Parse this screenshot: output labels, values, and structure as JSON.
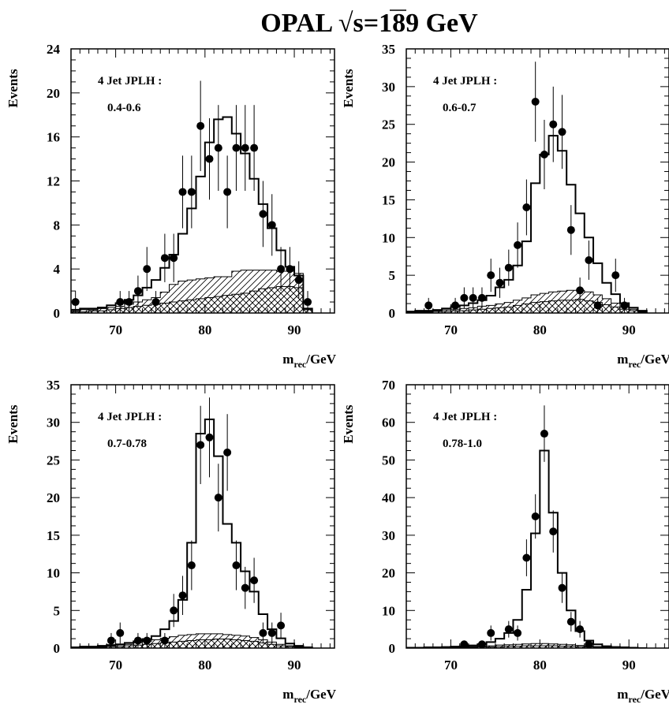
{
  "figure_title": {
    "prefix": "OPAL ",
    "sqrt_symbol": "√",
    "s_expr": "s=189 GeV"
  },
  "chart_data": [
    {
      "type": "histogram",
      "panel_position": "top-left",
      "annotation": {
        "line1": "4 Jet JPLH :",
        "line2": "0.4-0.6"
      },
      "ylabel": "Events",
      "xlabel": {
        "main": "m",
        "sub": "rec",
        "unit": "/GeV"
      },
      "xlim": [
        65,
        94.5
      ],
      "ylim": [
        0,
        24
      ],
      "xticks": [
        70,
        80,
        90
      ],
      "yticks": [
        0,
        4,
        8,
        12,
        16,
        20,
        24
      ],
      "hist_edges": [
        65,
        66,
        67,
        68,
        69,
        70,
        71,
        72,
        73,
        74,
        75,
        76,
        77,
        78,
        79,
        80,
        81,
        82,
        83,
        84,
        85,
        86,
        87,
        88,
        89,
        90,
        91,
        92
      ],
      "hist_values": [
        0.3,
        0.4,
        0.4,
        0.5,
        0.7,
        0.9,
        1.2,
        1.6,
        2.3,
        3.0,
        4.1,
        5.3,
        7.2,
        9.5,
        12.4,
        15.5,
        17.6,
        17.8,
        16.3,
        14.5,
        12.2,
        9.9,
        7.7,
        5.7,
        4.2,
        3.4,
        0.4
      ],
      "bkg_hatched": [
        0.1,
        0.1,
        0.2,
        0.2,
        0.3,
        0.4,
        0.5,
        0.6,
        0.7,
        0.8,
        0.9,
        1.0,
        1.1,
        1.2,
        1.3,
        1.4,
        1.5,
        1.6,
        1.7,
        1.8,
        2.0,
        2.2,
        2.3,
        2.4,
        2.4,
        2.3,
        0.3
      ],
      "bkg_total": [
        0.2,
        0.3,
        0.3,
        0.4,
        0.5,
        0.6,
        0.8,
        1.0,
        1.2,
        1.4,
        1.9,
        2.6,
        2.9,
        3.0,
        3.1,
        3.2,
        3.3,
        3.3,
        3.8,
        3.9,
        3.9,
        3.9,
        3.9,
        3.8,
        3.8,
        3.6,
        0.4
      ],
      "points": [
        {
          "x": 65.5,
          "y": 1,
          "err": 1.0
        },
        {
          "x": 70.5,
          "y": 1,
          "err": 1.0
        },
        {
          "x": 71.5,
          "y": 1,
          "err": 1.0
        },
        {
          "x": 72.5,
          "y": 2,
          "err": 1.4
        },
        {
          "x": 73.5,
          "y": 4,
          "err": 2.0
        },
        {
          "x": 74.5,
          "y": 1,
          "err": 1.0
        },
        {
          "x": 75.5,
          "y": 5,
          "err": 2.2
        },
        {
          "x": 76.5,
          "y": 5,
          "err": 2.2
        },
        {
          "x": 77.5,
          "y": 11,
          "err": 3.3
        },
        {
          "x": 78.5,
          "y": 11,
          "err": 3.3
        },
        {
          "x": 79.5,
          "y": 17,
          "err": 4.1
        },
        {
          "x": 80.5,
          "y": 14,
          "err": 3.7
        },
        {
          "x": 81.5,
          "y": 15,
          "err": 3.9
        },
        {
          "x": 82.5,
          "y": 11,
          "err": 3.3
        },
        {
          "x": 83.5,
          "y": 15,
          "err": 3.9
        },
        {
          "x": 84.5,
          "y": 15,
          "err": 3.9
        },
        {
          "x": 85.5,
          "y": 15,
          "err": 3.9
        },
        {
          "x": 86.5,
          "y": 9,
          "err": 3.0
        },
        {
          "x": 87.5,
          "y": 8,
          "err": 2.8
        },
        {
          "x": 88.5,
          "y": 4,
          "err": 2.0
        },
        {
          "x": 89.5,
          "y": 4,
          "err": 2.0
        },
        {
          "x": 90.5,
          "y": 3,
          "err": 1.7
        },
        {
          "x": 91.5,
          "y": 1,
          "err": 1.0
        }
      ]
    },
    {
      "type": "histogram",
      "panel_position": "top-right",
      "annotation": {
        "line1": "4 Jet JPLH :",
        "line2": "0.6-0.7"
      },
      "ylabel": "Events",
      "xlabel": {
        "main": "m",
        "sub": "rec",
        "unit": "/GeV"
      },
      "xlim": [
        65,
        94.5
      ],
      "ylim": [
        0,
        35
      ],
      "xticks": [
        70,
        80,
        90
      ],
      "yticks": [
        0,
        5,
        10,
        15,
        20,
        25,
        30,
        35
      ],
      "hist_edges": [
        65,
        66,
        67,
        68,
        69,
        70,
        71,
        72,
        73,
        74,
        75,
        76,
        77,
        78,
        79,
        80,
        81,
        82,
        83,
        84,
        85,
        86,
        87,
        88,
        89,
        90,
        91,
        92
      ],
      "hist_values": [
        0.2,
        0.3,
        0.3,
        0.4,
        0.6,
        0.8,
        1.0,
        1.3,
        1.7,
        2.3,
        3.4,
        4.4,
        6.3,
        9.5,
        17.2,
        21.0,
        23.5,
        21.5,
        17.0,
        13.2,
        10.0,
        6.6,
        4.0,
        2.5,
        1.3,
        0.7,
        0.3
      ],
      "bkg_hatched": [
        0.1,
        0.1,
        0.1,
        0.2,
        0.2,
        0.3,
        0.3,
        0.4,
        0.5,
        0.6,
        0.7,
        0.8,
        1.0,
        1.2,
        1.4,
        1.5,
        1.6,
        1.7,
        1.7,
        1.8,
        1.6,
        1.4,
        1.1,
        0.8,
        0.5,
        0.3,
        0.1
      ],
      "bkg_total": [
        0.1,
        0.2,
        0.2,
        0.3,
        0.4,
        0.5,
        0.6,
        0.7,
        0.9,
        1.0,
        1.2,
        1.4,
        1.7,
        2.0,
        2.4,
        2.6,
        2.8,
        2.9,
        3.0,
        3.0,
        2.8,
        2.4,
        1.9,
        1.3,
        0.8,
        0.5,
        0.2
      ],
      "points": [
        {
          "x": 67.5,
          "y": 1,
          "err": 1.0
        },
        {
          "x": 70.5,
          "y": 1,
          "err": 1.0
        },
        {
          "x": 71.5,
          "y": 2,
          "err": 1.4
        },
        {
          "x": 72.5,
          "y": 2,
          "err": 1.4
        },
        {
          "x": 73.5,
          "y": 2,
          "err": 1.4
        },
        {
          "x": 74.5,
          "y": 5,
          "err": 2.2
        },
        {
          "x": 75.5,
          "y": 4,
          "err": 2.0
        },
        {
          "x": 76.5,
          "y": 6,
          "err": 2.4
        },
        {
          "x": 77.5,
          "y": 9,
          "err": 3.0
        },
        {
          "x": 78.5,
          "y": 14,
          "err": 3.7
        },
        {
          "x": 79.5,
          "y": 28,
          "err": 5.3
        },
        {
          "x": 80.5,
          "y": 21,
          "err": 4.6
        },
        {
          "x": 81.5,
          "y": 25,
          "err": 5.0
        },
        {
          "x": 82.5,
          "y": 24,
          "err": 4.9
        },
        {
          "x": 83.5,
          "y": 11,
          "err": 3.3
        },
        {
          "x": 84.5,
          "y": 3,
          "err": 1.7
        },
        {
          "x": 85.5,
          "y": 7,
          "err": 2.6
        },
        {
          "x": 86.5,
          "y": 1,
          "err": 1.0
        },
        {
          "x": 88.5,
          "y": 5,
          "err": 2.2
        },
        {
          "x": 89.5,
          "y": 1,
          "err": 1.0
        }
      ]
    },
    {
      "type": "histogram",
      "panel_position": "bottom-left",
      "annotation": {
        "line1": "4 Jet JPLH :",
        "line2": "0.7-0.78"
      },
      "ylabel": "Events",
      "xlabel": {
        "main": "m",
        "sub": "rec",
        "unit": "/GeV"
      },
      "xlim": [
        65,
        94.5
      ],
      "ylim": [
        0,
        35
      ],
      "xticks": [
        70,
        80,
        90
      ],
      "yticks": [
        0,
        5,
        10,
        15,
        20,
        25,
        30,
        35
      ],
      "hist_edges": [
        65,
        66,
        67,
        68,
        69,
        70,
        71,
        72,
        73,
        74,
        75,
        76,
        77,
        78,
        79,
        80,
        81,
        82,
        83,
        84,
        85,
        86,
        87,
        88,
        89,
        90,
        91,
        92
      ],
      "hist_values": [
        0.1,
        0.2,
        0.2,
        0.3,
        0.4,
        0.5,
        0.7,
        0.9,
        1.2,
        1.6,
        2.5,
        3.6,
        6.4,
        14.0,
        28.5,
        30.4,
        25.5,
        16.5,
        14.0,
        10.2,
        7.5,
        4.5,
        2.5,
        1.3,
        0.6,
        0.3,
        0.1
      ],
      "bkg_hatched": [
        0.0,
        0.1,
        0.1,
        0.1,
        0.2,
        0.2,
        0.3,
        0.4,
        0.5,
        0.6,
        0.7,
        0.8,
        0.9,
        1.0,
        1.1,
        1.1,
        1.2,
        1.2,
        1.1,
        1.0,
        0.9,
        0.7,
        0.5,
        0.3,
        0.2,
        0.1,
        0.0
      ],
      "bkg_total": [
        0.1,
        0.1,
        0.2,
        0.2,
        0.3,
        0.4,
        0.5,
        0.7,
        0.9,
        1.1,
        1.3,
        1.5,
        1.7,
        1.8,
        1.9,
        1.9,
        1.9,
        1.8,
        1.7,
        1.6,
        1.4,
        1.1,
        0.8,
        0.5,
        0.3,
        0.2,
        0.1
      ],
      "points": [
        {
          "x": 69.5,
          "y": 1,
          "err": 1.0
        },
        {
          "x": 70.5,
          "y": 2,
          "err": 1.4
        },
        {
          "x": 72.5,
          "y": 1,
          "err": 1.0
        },
        {
          "x": 73.5,
          "y": 1,
          "err": 1.0
        },
        {
          "x": 75.5,
          "y": 1,
          "err": 1.0
        },
        {
          "x": 76.5,
          "y": 5,
          "err": 2.2
        },
        {
          "x": 77.5,
          "y": 7,
          "err": 2.6
        },
        {
          "x": 78.5,
          "y": 11,
          "err": 3.3
        },
        {
          "x": 79.5,
          "y": 27,
          "err": 5.2
        },
        {
          "x": 80.5,
          "y": 28,
          "err": 5.3
        },
        {
          "x": 81.5,
          "y": 20,
          "err": 4.5
        },
        {
          "x": 82.5,
          "y": 26,
          "err": 5.1
        },
        {
          "x": 83.5,
          "y": 11,
          "err": 3.3
        },
        {
          "x": 84.5,
          "y": 8,
          "err": 2.8
        },
        {
          "x": 85.5,
          "y": 9,
          "err": 3.0
        },
        {
          "x": 86.5,
          "y": 2,
          "err": 1.4
        },
        {
          "x": 87.5,
          "y": 2,
          "err": 1.4
        },
        {
          "x": 88.5,
          "y": 3,
          "err": 1.7
        }
      ]
    },
    {
      "type": "histogram",
      "panel_position": "bottom-right",
      "annotation": {
        "line1": "4 Jet JPLH :",
        "line2": "0.78-1.0"
      },
      "ylabel": "Events",
      "xlabel": {
        "main": "m",
        "sub": "rec",
        "unit": "/GeV"
      },
      "xlim": [
        65,
        94.5
      ],
      "ylim": [
        0,
        70
      ],
      "xticks": [
        70,
        80,
        90
      ],
      "yticks": [
        0,
        10,
        20,
        30,
        40,
        50,
        60,
        70
      ],
      "hist_edges": [
        65,
        66,
        67,
        68,
        69,
        70,
        71,
        72,
        73,
        74,
        75,
        76,
        77,
        78,
        79,
        80,
        81,
        82,
        83,
        84,
        85,
        86,
        87,
        88,
        89,
        90,
        91,
        92
      ],
      "hist_values": [
        0.1,
        0.1,
        0.2,
        0.2,
        0.3,
        0.4,
        0.5,
        0.7,
        1.0,
        1.6,
        2.5,
        4.0,
        7.5,
        15.5,
        30.5,
        52.5,
        36.0,
        20.0,
        10.0,
        4.5,
        2.0,
        1.0,
        0.5,
        0.3,
        0.2,
        0.1,
        0.0
      ],
      "bkg_hatched": [
        0.0,
        0.0,
        0.1,
        0.1,
        0.1,
        0.1,
        0.2,
        0.2,
        0.3,
        0.3,
        0.4,
        0.5,
        0.5,
        0.6,
        0.6,
        0.6,
        0.6,
        0.5,
        0.5,
        0.4,
        0.3,
        0.2,
        0.2,
        0.1,
        0.1,
        0.0,
        0.0
      ],
      "bkg_total": [
        0.1,
        0.1,
        0.1,
        0.2,
        0.2,
        0.3,
        0.3,
        0.4,
        0.5,
        0.6,
        0.8,
        0.9,
        1.0,
        1.1,
        1.2,
        1.2,
        1.1,
        1.0,
        0.9,
        0.7,
        0.5,
        0.4,
        0.3,
        0.2,
        0.1,
        0.1,
        0.0
      ],
      "points": [
        {
          "x": 71.5,
          "y": 1,
          "err": 1.0
        },
        {
          "x": 73.5,
          "y": 1,
          "err": 1.0
        },
        {
          "x": 74.5,
          "y": 4,
          "err": 2.0
        },
        {
          "x": 76.5,
          "y": 5,
          "err": 2.2
        },
        {
          "x": 77.5,
          "y": 4,
          "err": 2.0
        },
        {
          "x": 78.5,
          "y": 24,
          "err": 4.9
        },
        {
          "x": 79.5,
          "y": 35,
          "err": 5.9
        },
        {
          "x": 80.5,
          "y": 57,
          "err": 7.5
        },
        {
          "x": 81.5,
          "y": 31,
          "err": 5.6
        },
        {
          "x": 82.5,
          "y": 16,
          "err": 4.0
        },
        {
          "x": 83.5,
          "y": 7,
          "err": 2.6
        },
        {
          "x": 84.5,
          "y": 5,
          "err": 2.2
        },
        {
          "x": 85.5,
          "y": 1,
          "err": 1.0
        }
      ]
    }
  ]
}
